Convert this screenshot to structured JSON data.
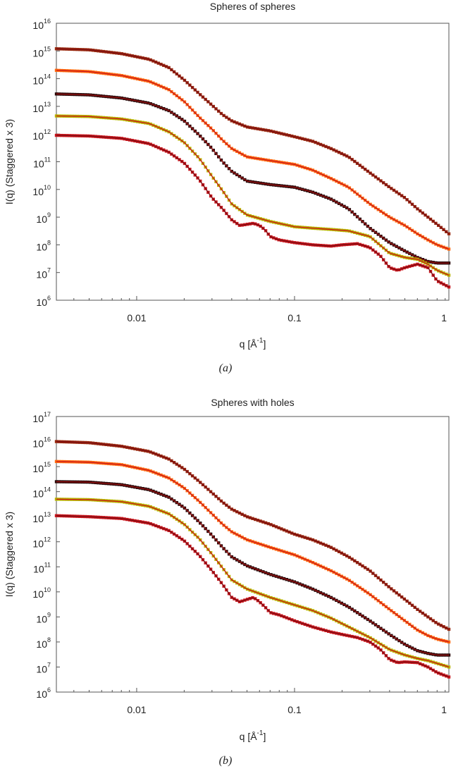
{
  "colors": {
    "dark_red": "#7a0c12",
    "red": "#c8161d",
    "brown_red": "#9a2a10",
    "orange": "#ff6a10",
    "yellow_green": "#b8b400"
  },
  "chart_data": [
    {
      "type": "line",
      "title": "Spheres of spheres",
      "xlabel": "q [Å",
      "xlabel_sup": "-1",
      "xlabel_tail": "]",
      "ylabel": "I(q) (Staggered x 3)",
      "panel_label": "(a)",
      "x_scale": "log",
      "y_scale": "log",
      "xlim": [
        0.0031,
        0.95
      ],
      "ylim": [
        1000000.0,
        1e+16
      ],
      "x_ticks": [
        {
          "value": 0.01,
          "label": "0.01"
        },
        {
          "value": 0.1,
          "label": "0.1"
        },
        {
          "value": 1,
          "label": "1"
        }
      ],
      "y_ticks": [
        {
          "value": 1000000.0,
          "base": "10",
          "exp": "6"
        },
        {
          "value": 10000000.0,
          "base": "10",
          "exp": "7"
        },
        {
          "value": 100000000.0,
          "base": "10",
          "exp": "8"
        },
        {
          "value": 1000000000.0,
          "base": "10",
          "exp": "9"
        },
        {
          "value": 10000000000.0,
          "base": "10",
          "exp": "10"
        },
        {
          "value": 100000000000.0,
          "base": "10",
          "exp": "11"
        },
        {
          "value": 1000000000000.0,
          "base": "10",
          "exp": "12"
        },
        {
          "value": 10000000000000.0,
          "base": "10",
          "exp": "13"
        },
        {
          "value": 100000000000000.0,
          "base": "10",
          "exp": "14"
        },
        {
          "value": 1000000000000000.0,
          "base": "10",
          "exp": "15"
        },
        {
          "value": 1e+16,
          "base": "10",
          "exp": "16"
        }
      ],
      "grid": false,
      "series": [
        {
          "marker_color": "#9a2a10",
          "fit_color": "#7a0c12",
          "x": [
            0.0031,
            0.005,
            0.008,
            0.012,
            0.016,
            0.02,
            0.025,
            0.03,
            0.035,
            0.04,
            0.05,
            0.07,
            0.1,
            0.13,
            0.17,
            0.22,
            0.3,
            0.4,
            0.5,
            0.6,
            0.7,
            0.8,
            0.95
          ],
          "y": [
            1200000000000000.0,
            1100000000000000.0,
            800000000000000.0,
            500000000000000.0,
            250000000000000.0,
            90000000000000.0,
            28000000000000.0,
            11000000000000.0,
            5000000000000.0,
            3000000000000.0,
            1800000000000.0,
            1300000000000.0,
            800000000000.0,
            550000000000.0,
            300000000000.0,
            150000000000.0,
            40000000000.0,
            12000000000.0,
            5000000000.0,
            2000000000.0,
            1000000000.0,
            550000000.0,
            250000000.0
          ]
        },
        {
          "marker_color": "#ff6a10",
          "fit_color": "#c8161d",
          "x": [
            0.0031,
            0.005,
            0.008,
            0.012,
            0.016,
            0.02,
            0.025,
            0.03,
            0.035,
            0.04,
            0.05,
            0.07,
            0.1,
            0.13,
            0.17,
            0.22,
            0.3,
            0.4,
            0.5,
            0.6,
            0.7,
            0.8,
            0.95
          ],
          "y": [
            200000000000000.0,
            180000000000000.0,
            130000000000000.0,
            80000000000000.0,
            40000000000000.0,
            15000000000000.0,
            4000000000000.0,
            1500000000000.0,
            600000000000.0,
            300000000000.0,
            150000000000.0,
            110000000000.0,
            80000000000.0,
            50000000000.0,
            25000000000.0,
            12000000000.0,
            3000000000.0,
            1000000000.0,
            500000000.0,
            250000000.0,
            150000000.0,
            100000000.0,
            70000000.0
          ]
        },
        {
          "marker_color": "#2a0a0a",
          "fit_color": "#9a1010",
          "x": [
            0.0031,
            0.005,
            0.008,
            0.012,
            0.016,
            0.02,
            0.025,
            0.03,
            0.035,
            0.04,
            0.05,
            0.07,
            0.1,
            0.13,
            0.17,
            0.22,
            0.3,
            0.4,
            0.5,
            0.6,
            0.7,
            0.8,
            0.95
          ],
          "y": [
            28000000000000.0,
            26000000000000.0,
            20000000000000.0,
            13000000000000.0,
            7000000000000.0,
            3000000000000.0,
            900000000000.0,
            300000000000.0,
            100000000000.0,
            45000000000.0,
            20000000000.0,
            15000000000.0,
            12000000000.0,
            8000000000.0,
            4500000000.0,
            2000000000.0,
            400000000.0,
            120000000.0,
            60000000.0,
            35000000.0,
            25000000.0,
            22000000.0,
            22000000.0
          ]
        },
        {
          "marker_color": "#b8b400",
          "fit_color": "#c8161d",
          "x": [
            0.0031,
            0.005,
            0.008,
            0.012,
            0.016,
            0.02,
            0.025,
            0.03,
            0.035,
            0.04,
            0.05,
            0.07,
            0.1,
            0.13,
            0.17,
            0.22,
            0.3,
            0.4,
            0.5,
            0.6,
            0.7,
            0.8,
            0.95
          ],
          "y": [
            4500000000000.0,
            4300000000000.0,
            3500000000000.0,
            2400000000000.0,
            1200000000000.0,
            500000000000.0,
            130000000000.0,
            30000000000.0,
            9000000000.0,
            3000000000.0,
            1200000000.0,
            700000000.0,
            450000000.0,
            400000000.0,
            360000000.0,
            320000000.0,
            200000000.0,
            50000000.0,
            35000000.0,
            30000000.0,
            20000000.0,
            12000000.0,
            8000000.0
          ]
        },
        {
          "marker_color": "#c8161d",
          "fit_color": "#7a0c12",
          "x": [
            0.0031,
            0.005,
            0.008,
            0.012,
            0.016,
            0.02,
            0.025,
            0.03,
            0.035,
            0.04,
            0.045,
            0.05,
            0.055,
            0.06,
            0.065,
            0.07,
            0.08,
            0.1,
            0.13,
            0.17,
            0.2,
            0.25,
            0.3,
            0.35,
            0.4,
            0.45,
            0.5,
            0.6,
            0.7,
            0.8,
            0.95
          ],
          "y": [
            900000000000.0,
            850000000000.0,
            700000000000.0,
            450000000000.0,
            220000000000.0,
            90000000000.0,
            22000000000.0,
            5000000000.0,
            2000000000.0,
            800000000.0,
            500000000.0,
            550000000.0,
            600000000.0,
            500000000.0,
            350000000.0,
            200000000.0,
            150000000.0,
            120000000.0,
            100000000.0,
            90000000.0,
            100000000.0,
            110000000.0,
            80000000.0,
            40000000.0,
            15000000.0,
            12000000.0,
            15000000.0,
            20000000.0,
            15000000.0,
            5000000.0,
            3000000.0
          ]
        }
      ]
    },
    {
      "type": "line",
      "title": "Spheres with holes",
      "xlabel": "q [Å",
      "xlabel_sup": "-1",
      "xlabel_tail": "]",
      "ylabel": "I(q) (Staggered x 3)",
      "panel_label": "(b)",
      "x_scale": "log",
      "y_scale": "log",
      "xlim": [
        0.0031,
        0.95
      ],
      "ylim": [
        1000000.0,
        1e+17
      ],
      "x_ticks": [
        {
          "value": 0.01,
          "label": "0.01"
        },
        {
          "value": 0.1,
          "label": "0.1"
        },
        {
          "value": 1,
          "label": "1"
        }
      ],
      "y_ticks": [
        {
          "value": 1000000.0,
          "base": "10",
          "exp": "6"
        },
        {
          "value": 10000000.0,
          "base": "10",
          "exp": "7"
        },
        {
          "value": 100000000.0,
          "base": "10",
          "exp": "8"
        },
        {
          "value": 1000000000.0,
          "base": "10",
          "exp": "9"
        },
        {
          "value": 10000000000.0,
          "base": "10",
          "exp": "10"
        },
        {
          "value": 100000000000.0,
          "base": "10",
          "exp": "11"
        },
        {
          "value": 1000000000000.0,
          "base": "10",
          "exp": "12"
        },
        {
          "value": 10000000000000.0,
          "base": "10",
          "exp": "13"
        },
        {
          "value": 100000000000000.0,
          "base": "10",
          "exp": "14"
        },
        {
          "value": 1000000000000000.0,
          "base": "10",
          "exp": "15"
        },
        {
          "value": 1e+16,
          "base": "10",
          "exp": "16"
        },
        {
          "value": 1e+17,
          "base": "10",
          "exp": "17"
        }
      ],
      "grid": false,
      "series": [
        {
          "marker_color": "#9a2a10",
          "fit_color": "#7a0c12",
          "x": [
            0.0031,
            0.005,
            0.008,
            0.012,
            0.016,
            0.02,
            0.025,
            0.03,
            0.035,
            0.04,
            0.05,
            0.07,
            0.1,
            0.13,
            0.17,
            0.22,
            0.3,
            0.4,
            0.5,
            0.6,
            0.7,
            0.8,
            0.95
          ],
          "y": [
            1e+16,
            9000000000000000.0,
            6500000000000000.0,
            4000000000000000.0,
            2000000000000000.0,
            800000000000000.0,
            250000000000000.0,
            90000000000000.0,
            38000000000000.0,
            20000000000000.0,
            10000000000000.0,
            5000000000000.0,
            2000000000000.0,
            1200000000000.0,
            600000000000.0,
            250000000000.0,
            70000000000.0,
            15000000000.0,
            5000000000.0,
            2000000000.0,
            1000000000.0,
            550000000.0,
            320000000.0
          ]
        },
        {
          "marker_color": "#ff6a10",
          "fit_color": "#c8161d",
          "x": [
            0.0031,
            0.005,
            0.008,
            0.012,
            0.016,
            0.02,
            0.025,
            0.03,
            0.035,
            0.04,
            0.05,
            0.07,
            0.1,
            0.13,
            0.17,
            0.22,
            0.3,
            0.4,
            0.5,
            0.6,
            0.7,
            0.8,
            0.95
          ],
          "y": [
            1600000000000000.0,
            1500000000000000.0,
            1200000000000000.0,
            700000000000000.0,
            350000000000000.0,
            140000000000000.0,
            40000000000000.0,
            13000000000000.0,
            5000000000000.0,
            2500000000000.0,
            1200000000000.0,
            600000000000.0,
            300000000000.0,
            150000000000.0,
            70000000000.0,
            30000000000.0,
            8000000000.0,
            2000000000.0,
            700000000.0,
            300000000.0,
            180000000.0,
            130000000.0,
            100000000.0
          ]
        },
        {
          "marker_color": "#2a0a0a",
          "fit_color": "#9a1010",
          "x": [
            0.0031,
            0.005,
            0.008,
            0.012,
            0.016,
            0.02,
            0.025,
            0.03,
            0.035,
            0.04,
            0.05,
            0.07,
            0.1,
            0.13,
            0.17,
            0.22,
            0.3,
            0.4,
            0.5,
            0.6,
            0.7,
            0.8,
            0.95
          ],
          "y": [
            250000000000000.0,
            240000000000000.0,
            190000000000000.0,
            120000000000000.0,
            60000000000000.0,
            23000000000000.0,
            6000000000000.0,
            1800000000000.0,
            600000000000.0,
            250000000000.0,
            110000000000.0,
            50000000000.0,
            25000000000.0,
            13000000000.0,
            6000000000.0,
            2500000000.0,
            700000000.0,
            200000000.0,
            80000000.0,
            45000000.0,
            35000000.0,
            30000000.0,
            30000000.0
          ]
        },
        {
          "marker_color": "#b8b400",
          "fit_color": "#c8161d",
          "x": [
            0.0031,
            0.005,
            0.008,
            0.012,
            0.016,
            0.02,
            0.025,
            0.03,
            0.035,
            0.04,
            0.05,
            0.07,
            0.1,
            0.13,
            0.17,
            0.22,
            0.3,
            0.4,
            0.5,
            0.6,
            0.7,
            0.8,
            0.95
          ],
          "y": [
            50000000000000.0,
            48000000000000.0,
            40000000000000.0,
            26000000000000.0,
            13000000000000.0,
            5000000000000.0,
            1300000000000.0,
            320000000000.0,
            90000000000.0,
            30000000000.0,
            13000000000.0,
            6000000000.0,
            3000000000.0,
            1800000000.0,
            900000000.0,
            400000000.0,
            150000000.0,
            50000000.0,
            30000000.0,
            22000000.0,
            18000000.0,
            14000000.0,
            10000000.0
          ]
        },
        {
          "marker_color": "#c8161d",
          "fit_color": "#7a0c12",
          "x": [
            0.0031,
            0.005,
            0.008,
            0.012,
            0.016,
            0.02,
            0.025,
            0.03,
            0.035,
            0.04,
            0.045,
            0.05,
            0.055,
            0.06,
            0.065,
            0.07,
            0.08,
            0.1,
            0.13,
            0.17,
            0.2,
            0.25,
            0.3,
            0.35,
            0.4,
            0.45,
            0.5,
            0.6,
            0.7,
            0.8,
            0.95
          ],
          "y": [
            11000000000000.0,
            10000000000000.0,
            8500000000000.0,
            5500000000000.0,
            2800000000000.0,
            1100000000000.0,
            280000000000.0,
            70000000000.0,
            20000000000.0,
            6000000000.0,
            4000000000.0,
            5000000000.0,
            6000000000.0,
            4000000000.0,
            2500000000.0,
            1500000000.0,
            1200000000.0,
            700000000.0,
            400000000.0,
            250000000.0,
            200000000.0,
            150000000.0,
            100000000.0,
            50000000.0,
            20000000.0,
            15000000.0,
            16000000.0,
            15000000.0,
            10000000.0,
            6000000.0,
            4000000.0
          ]
        }
      ]
    }
  ]
}
